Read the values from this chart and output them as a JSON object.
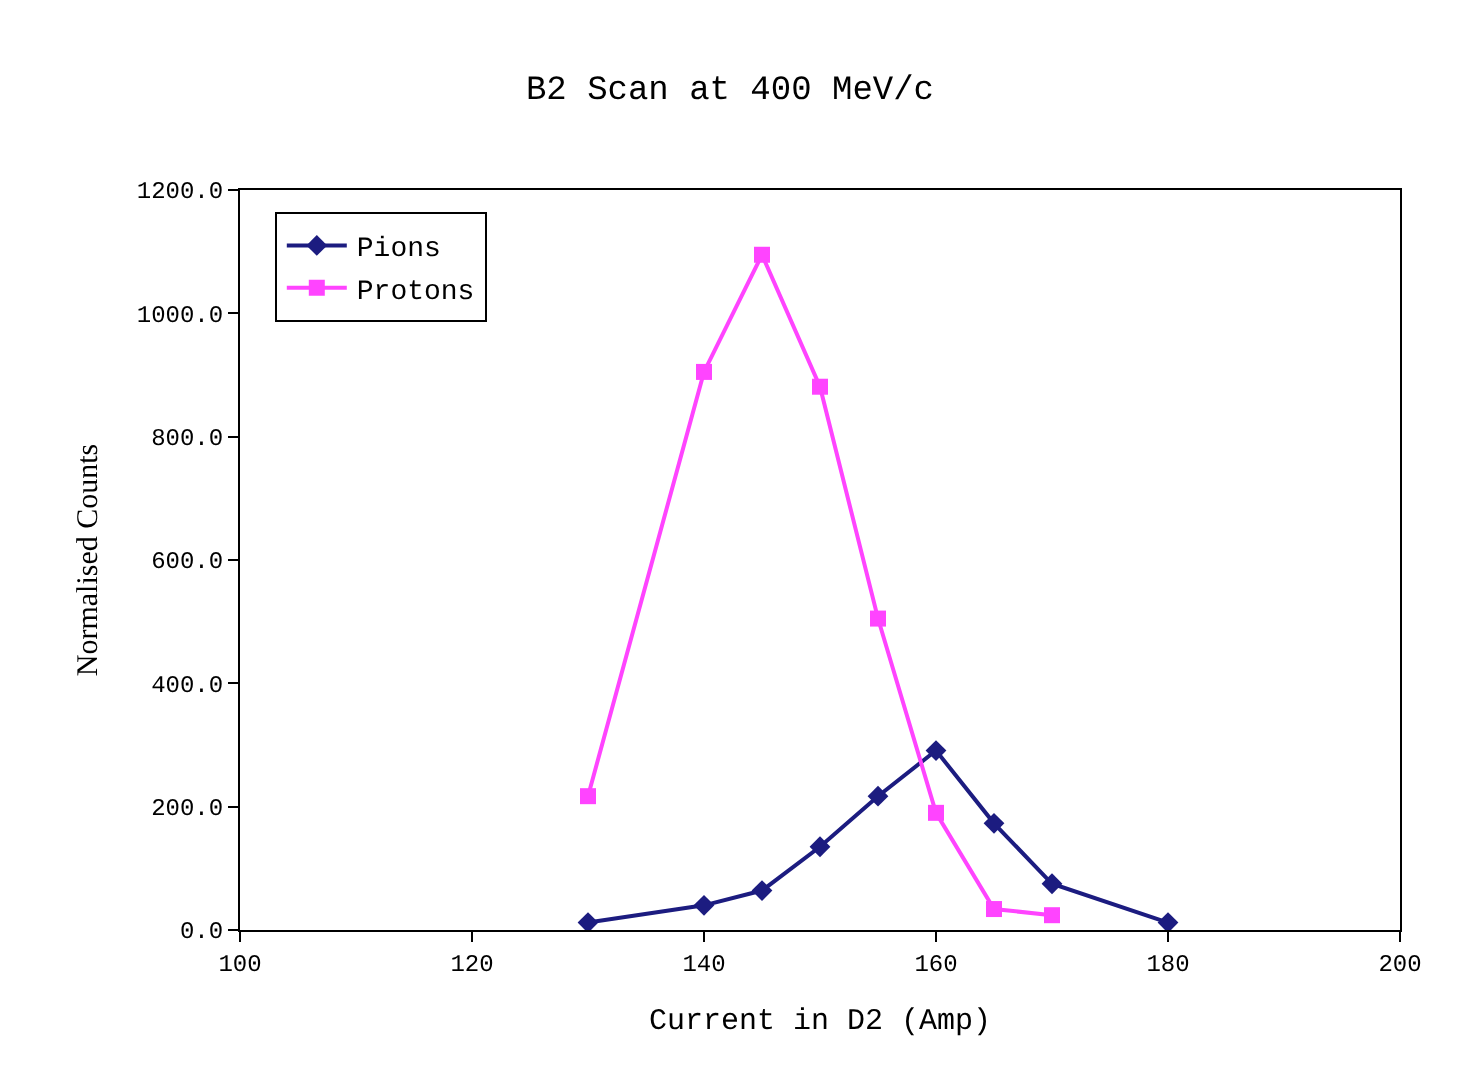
{
  "chart_data": {
    "type": "line",
    "title": "B2 Scan at 400 MeV/c",
    "xlabel": "Current in D2 (Amp)",
    "ylabel": "Normalised Counts",
    "x": [
      130,
      140,
      145,
      150,
      155,
      160,
      165,
      170,
      180
    ],
    "series": [
      {
        "name": "Pions",
        "color": "#1c1c80",
        "marker": "diamond",
        "values": [
          12,
          40,
          64,
          135,
          217,
          291,
          173,
          75,
          12
        ]
      },
      {
        "name": "Protons",
        "color": "#ff44ff",
        "marker": "square",
        "x": [
          130,
          140,
          145,
          150,
          155,
          160,
          165,
          170
        ],
        "values": [
          217,
          905,
          1095,
          881,
          505,
          190,
          34,
          24
        ]
      }
    ],
    "xlim": [
      100,
      200
    ],
    "xticks": [
      100,
      120,
      140,
      160,
      180,
      200
    ],
    "ylim": [
      0,
      1200
    ],
    "yticks": [
      {
        "value": 0,
        "label": "0.0"
      },
      {
        "value": 200,
        "label": "200.0"
      },
      {
        "value": 400,
        "label": "400.0"
      },
      {
        "value": 600,
        "label": "600.0"
      },
      {
        "value": 800,
        "label": "800.0"
      },
      {
        "value": 1000,
        "label": "1000.0"
      },
      {
        "value": 1200,
        "label": "1200.0"
      }
    ],
    "legend": "top left",
    "line_style": "solid"
  }
}
